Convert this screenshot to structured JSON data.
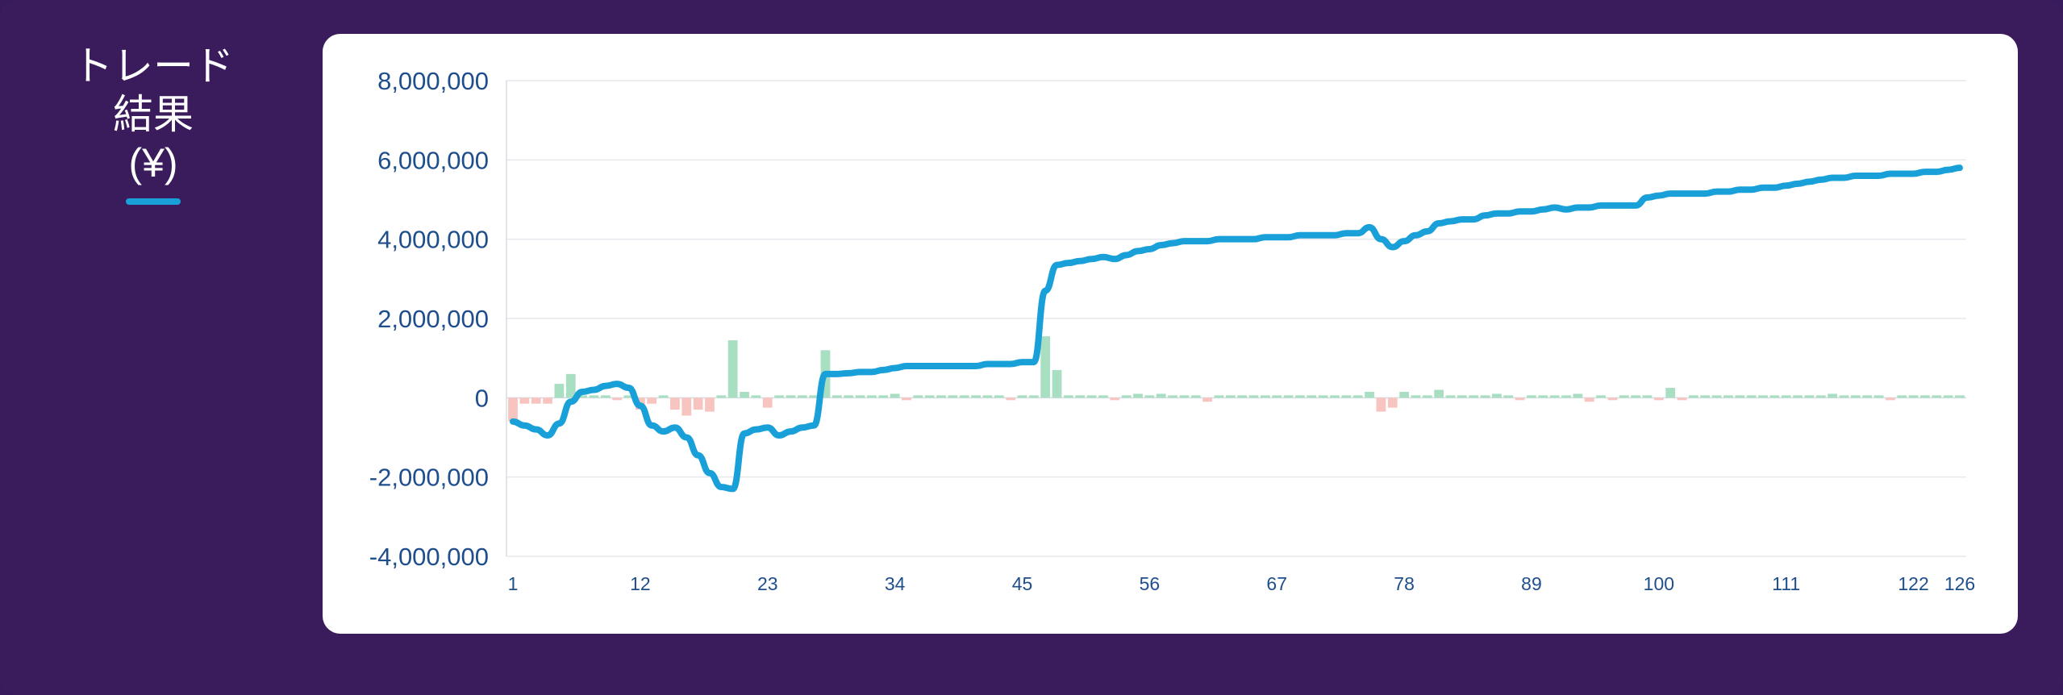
{
  "header": {
    "title_lines": [
      "トレード",
      "結果",
      "(¥)"
    ],
    "legend_color": "#1aa0d8"
  },
  "colors": {
    "line": "#1aa0d8",
    "profit_bar": "#a8dfc2",
    "loss_bar": "#f7c4c0",
    "axis_text": "#1f4e8c",
    "grid": "#e6e8ee",
    "background": "#371a5b"
  },
  "chart_data": {
    "type": "bar+line",
    "title": "トレード結果 (¥)",
    "xlabel": "",
    "ylabel": "",
    "x_ticks": [
      1,
      12,
      23,
      34,
      45,
      56,
      67,
      78,
      89,
      100,
      111,
      122,
      126
    ],
    "y_ticks": [
      -4000000,
      -2000000,
      0,
      2000000,
      4000000,
      6000000,
      8000000
    ],
    "y_tick_labels": [
      "-4,000,000",
      "-2,000,000",
      "0",
      "2,000,000",
      "4,000,000",
      "6,000,000",
      "8,000,000"
    ],
    "ylim": [
      -4000000,
      8000000
    ],
    "xlim": [
      1,
      126
    ],
    "grid": true,
    "series": [
      {
        "kind": "bar",
        "values": [
          -600000,
          -150000,
          -150000,
          -150000,
          350000,
          600000,
          50000,
          50000,
          0,
          -50000,
          0,
          -300000,
          -150000,
          50000,
          -300000,
          -450000,
          -300000,
          -350000,
          50000,
          1450000,
          150000,
          0,
          -250000,
          50000,
          0,
          50000,
          50000,
          1200000,
          0,
          0,
          0,
          0,
          0,
          100000,
          -50000,
          0,
          0,
          0,
          0,
          0,
          0,
          50000,
          0,
          -50000,
          50000,
          0,
          1550000,
          700000,
          50000,
          0,
          0,
          50000,
          -50000,
          50000,
          100000,
          0,
          100000,
          50000,
          0,
          50000,
          -100000,
          0,
          0,
          0,
          0,
          0,
          0,
          0,
          0,
          0,
          0,
          0,
          0,
          0,
          150000,
          -350000,
          -250000,
          150000,
          50000,
          50000,
          200000,
          0,
          0,
          0,
          50000,
          100000,
          50000,
          -50000,
          50000,
          0,
          0,
          0,
          100000,
          -100000,
          50000,
          -50000,
          50000,
          0,
          0,
          -50000,
          250000,
          -50000,
          50000,
          0,
          0,
          0,
          0,
          0,
          50000,
          0,
          0,
          0,
          50000,
          0,
          100000,
          0,
          0,
          0,
          0,
          -50000,
          50000,
          0,
          0,
          0,
          0,
          0
        ]
      },
      {
        "kind": "line",
        "values": [
          -600000,
          -700000,
          -800000,
          -950000,
          -650000,
          -100000,
          150000,
          200000,
          300000,
          350000,
          250000,
          -200000,
          -700000,
          -850000,
          -750000,
          -1000000,
          -1450000,
          -1900000,
          -2250000,
          -2300000,
          -900000,
          -800000,
          -750000,
          -950000,
          -850000,
          -750000,
          -700000,
          600000,
          600000,
          620000,
          650000,
          650000,
          700000,
          750000,
          800000,
          800000,
          800000,
          800000,
          800000,
          800000,
          800000,
          850000,
          850000,
          850000,
          900000,
          900000,
          2700000,
          3350000,
          3400000,
          3450000,
          3500000,
          3550000,
          3500000,
          3600000,
          3700000,
          3750000,
          3850000,
          3900000,
          3950000,
          3950000,
          3950000,
          4000000,
          4000000,
          4000000,
          4000000,
          4050000,
          4050000,
          4050000,
          4100000,
          4100000,
          4100000,
          4100000,
          4150000,
          4150000,
          4300000,
          4000000,
          3800000,
          3950000,
          4100000,
          4200000,
          4400000,
          4450000,
          4500000,
          4500000,
          4600000,
          4650000,
          4650000,
          4700000,
          4700000,
          4750000,
          4800000,
          4750000,
          4800000,
          4800000,
          4850000,
          4850000,
          4850000,
          4850000,
          5050000,
          5100000,
          5150000,
          5150000,
          5150000,
          5150000,
          5200000,
          5200000,
          5250000,
          5250000,
          5300000,
          5300000,
          5350000,
          5400000,
          5450000,
          5500000,
          5550000,
          5550000,
          5600000,
          5600000,
          5600000,
          5650000,
          5650000,
          5650000,
          5700000,
          5700000,
          5750000,
          5800000
        ]
      }
    ]
  }
}
